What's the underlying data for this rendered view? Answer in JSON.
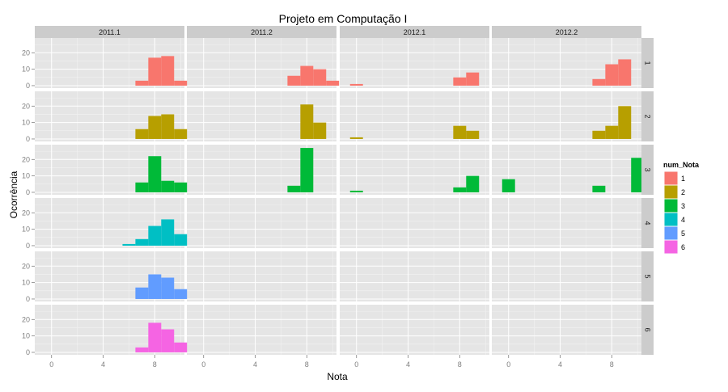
{
  "chart_data": {
    "type": "bar",
    "title": "Projeto em Computação I",
    "xlabel": "Nota",
    "ylabel": "Ocorrência",
    "xlim": [
      -1.3,
      10.3
    ],
    "ylim": [
      -1.5,
      29
    ],
    "x_ticks": [
      0,
      4,
      8
    ],
    "x_tick_labels": [
      "0",
      "4",
      "8"
    ],
    "y_ticks": [
      0,
      10,
      20
    ],
    "y_tick_labels": [
      "0",
      "10",
      "20"
    ],
    "bin_width": 1,
    "grid": true,
    "facet_cols": [
      "2011.1",
      "2011.2",
      "2012.1",
      "2012.2"
    ],
    "facet_rows": [
      "1",
      "2",
      "3",
      "4",
      "5",
      "6"
    ],
    "legend": {
      "title": "num_Nota",
      "placement": "right",
      "items": [
        {
          "label": "1",
          "color": "#F8766D"
        },
        {
          "label": "2",
          "color": "#B79F00"
        },
        {
          "label": "3",
          "color": "#00BA38"
        },
        {
          "label": "4",
          "color": "#00BFC4"
        },
        {
          "label": "5",
          "color": "#619CFF"
        },
        {
          "label": "6",
          "color": "#F564E3"
        }
      ]
    },
    "panels": [
      {
        "col": 0,
        "row": 0,
        "bars": [
          {
            "x": 7.0,
            "y": 3
          },
          {
            "x": 8.0,
            "y": 17
          },
          {
            "x": 9.0,
            "y": 18
          },
          {
            "x": 10.0,
            "y": 3
          }
        ]
      },
      {
        "col": 1,
        "row": 0,
        "bars": [
          {
            "x": 7.0,
            "y": 6
          },
          {
            "x": 8.0,
            "y": 12
          },
          {
            "x": 9.0,
            "y": 10
          },
          {
            "x": 10.0,
            "y": 3
          }
        ]
      },
      {
        "col": 2,
        "row": 0,
        "bars": [
          {
            "x": 0.0,
            "y": 1
          },
          {
            "x": 8.0,
            "y": 5
          },
          {
            "x": 9.0,
            "y": 8
          }
        ]
      },
      {
        "col": 3,
        "row": 0,
        "bars": [
          {
            "x": 7.0,
            "y": 4
          },
          {
            "x": 8.0,
            "y": 13
          },
          {
            "x": 9.0,
            "y": 16
          }
        ]
      },
      {
        "col": 0,
        "row": 1,
        "bars": [
          {
            "x": 7.0,
            "y": 6
          },
          {
            "x": 8.0,
            "y": 14
          },
          {
            "x": 9.0,
            "y": 15
          },
          {
            "x": 10.0,
            "y": 6
          }
        ]
      },
      {
        "col": 1,
        "row": 1,
        "bars": [
          {
            "x": 8.0,
            "y": 21
          },
          {
            "x": 9.0,
            "y": 10
          }
        ]
      },
      {
        "col": 2,
        "row": 1,
        "bars": [
          {
            "x": 0.0,
            "y": 1
          },
          {
            "x": 8.0,
            "y": 8
          },
          {
            "x": 9.0,
            "y": 5
          }
        ]
      },
      {
        "col": 3,
        "row": 1,
        "bars": [
          {
            "x": 7.0,
            "y": 5
          },
          {
            "x": 8.0,
            "y": 8
          },
          {
            "x": 9.0,
            "y": 20
          }
        ]
      },
      {
        "col": 0,
        "row": 2,
        "bars": [
          {
            "x": 7.0,
            "y": 6
          },
          {
            "x": 8.0,
            "y": 22
          },
          {
            "x": 9.0,
            "y": 7
          },
          {
            "x": 10.0,
            "y": 6
          }
        ]
      },
      {
        "col": 1,
        "row": 2,
        "bars": [
          {
            "x": 7.0,
            "y": 4
          },
          {
            "x": 8.0,
            "y": 27
          }
        ]
      },
      {
        "col": 2,
        "row": 2,
        "bars": [
          {
            "x": 0.0,
            "y": 1
          },
          {
            "x": 8.0,
            "y": 3
          },
          {
            "x": 9.0,
            "y": 10
          }
        ]
      },
      {
        "col": 3,
        "row": 2,
        "bars": [
          {
            "x": 0.0,
            "y": 8
          },
          {
            "x": 7.0,
            "y": 4
          },
          {
            "x": 10.0,
            "y": 21
          }
        ]
      },
      {
        "col": 0,
        "row": 3,
        "bars": [
          {
            "x": 6.0,
            "y": 1
          },
          {
            "x": 7.0,
            "y": 4
          },
          {
            "x": 8.0,
            "y": 12
          },
          {
            "x": 9.0,
            "y": 16
          },
          {
            "x": 10.0,
            "y": 7
          }
        ]
      },
      {
        "col": 0,
        "row": 4,
        "bars": [
          {
            "x": 7.0,
            "y": 7
          },
          {
            "x": 8.0,
            "y": 15
          },
          {
            "x": 9.0,
            "y": 13
          },
          {
            "x": 10.0,
            "y": 6
          }
        ]
      },
      {
        "col": 0,
        "row": 5,
        "bars": [
          {
            "x": 7.0,
            "y": 3
          },
          {
            "x": 8.0,
            "y": 18
          },
          {
            "x": 9.0,
            "y": 14
          },
          {
            "x": 10.0,
            "y": 6
          }
        ]
      }
    ]
  }
}
